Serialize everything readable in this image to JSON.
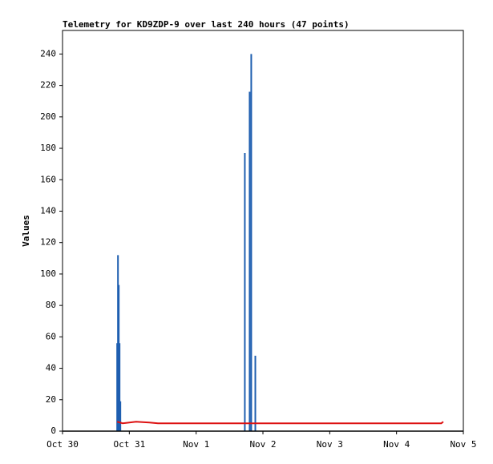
{
  "chart_data": {
    "type": "line",
    "title": "Telemetry for KD9ZDP-9 over last 240 hours (47 points)",
    "ylabel": "Values",
    "xlim": [
      0,
      6
    ],
    "xticks": [
      {
        "value": 0,
        "label": "Oct 30"
      },
      {
        "value": 1,
        "label": "Oct 31"
      },
      {
        "value": 2,
        "label": "Nov 1"
      },
      {
        "value": 3,
        "label": "Nov 2"
      },
      {
        "value": 4,
        "label": "Nov 3"
      },
      {
        "value": 5,
        "label": "Nov 4"
      },
      {
        "value": 6,
        "label": "Nov 5"
      }
    ],
    "ylim": [
      0,
      255
    ],
    "yticks": [
      0,
      20,
      40,
      60,
      80,
      100,
      120,
      140,
      160,
      180,
      200,
      220,
      240
    ],
    "series": [
      {
        "color": "#1f5fb0",
        "style": "impulse",
        "x": [
          0.818,
          0.83,
          0.842,
          0.854,
          0.866,
          2.729,
          2.801,
          2.825,
          2.886
        ],
        "values": [
          56,
          112,
          93,
          56,
          19,
          177,
          216,
          240,
          48
        ]
      },
      {
        "color": "#dd1111",
        "style": "line",
        "x": [
          0.818,
          0.9,
          1.0,
          1.1,
          1.3,
          1.43,
          2.7,
          2.9,
          5.67,
          5.7
        ],
        "values": [
          6,
          5,
          5.5,
          6,
          5.5,
          5,
          5,
          5,
          5,
          6
        ]
      }
    ]
  }
}
